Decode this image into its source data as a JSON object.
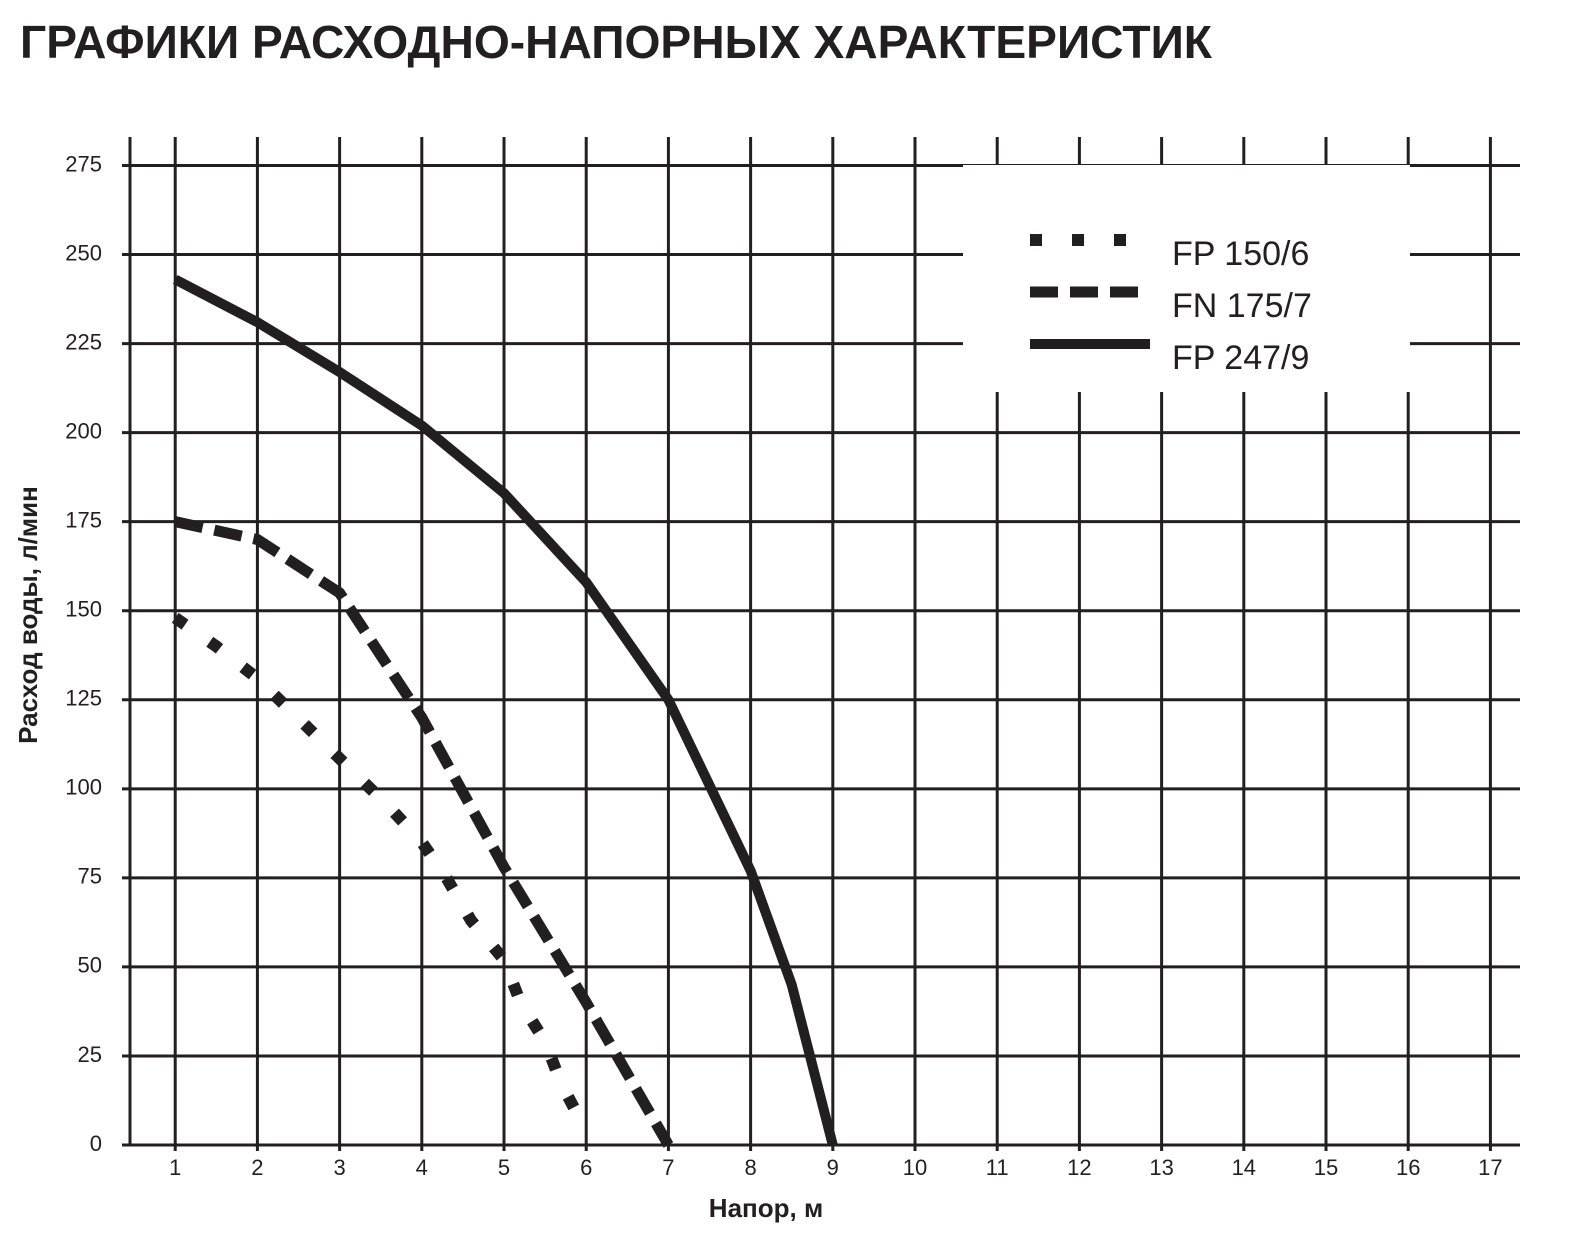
{
  "chart_data": {
    "type": "line",
    "title": "ГРАФИКИ РАСХОДНО-НАПОРНЫХ ХАРАКТЕРИСТИК",
    "x_label": "Напор, м",
    "y_label": "Расход воды, л/мин",
    "xlim": [
      0.45,
      17.36
    ],
    "ylim": [
      0,
      283
    ],
    "xticks": [
      1,
      2,
      3,
      4,
      5,
      6,
      7,
      8,
      9,
      10,
      11,
      12,
      13,
      14,
      15,
      16,
      17
    ],
    "yticks": [
      0,
      25,
      50,
      75,
      100,
      125,
      150,
      175,
      200,
      225,
      250,
      275
    ],
    "grid": true,
    "legend": "top-right",
    "series": [
      {
        "name": "FP 150/6",
        "color": "#231f20",
        "style": "dotted",
        "x": [
          1,
          1.5,
          2,
          2.4,
          2.8,
          3.2,
          3.6,
          4,
          4.3,
          4.6,
          5,
          5.2,
          5.5,
          5.7,
          6
        ],
        "values": [
          148,
          140,
          131,
          122,
          113,
          104,
          95,
          85,
          75,
          63,
          52,
          40,
          29,
          17,
          4
        ]
      },
      {
        "name": "FN 175/7",
        "color": "#231f20",
        "style": "dashed",
        "x": [
          1,
          2,
          3,
          4,
          5,
          6,
          7
        ],
        "values": [
          175,
          170,
          155,
          120,
          78,
          40,
          0
        ]
      },
      {
        "name": "FP 247/9",
        "color": "#231f20",
        "style": "solid",
        "x": [
          1,
          2,
          3,
          4,
          5,
          6,
          7,
          8,
          8.5,
          9
        ],
        "values": [
          243,
          231,
          217,
          202,
          183,
          158,
          125,
          77,
          45,
          0
        ]
      }
    ]
  }
}
